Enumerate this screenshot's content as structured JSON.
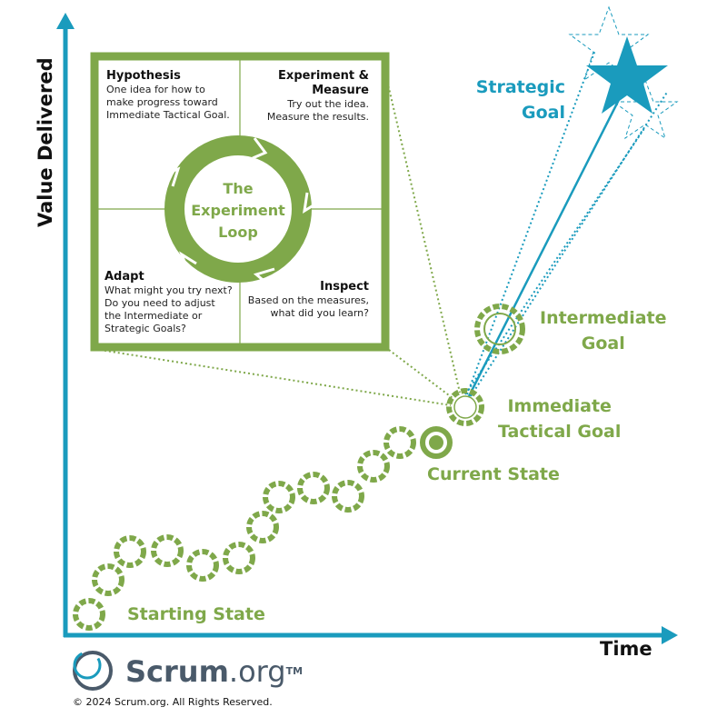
{
  "axes": {
    "y_label": "Value Delivered",
    "x_label": "Time"
  },
  "loop": {
    "center_title": [
      "The",
      "Experiment",
      "Loop"
    ],
    "quadrants": [
      {
        "title": "Hypothesis",
        "body": [
          "One idea for how to",
          "make progress toward",
          "Immediate Tactical Goal."
        ]
      },
      {
        "title": [
          "Experiment &",
          "Measure"
        ],
        "body": [
          "Try out the idea.",
          "Measure the results."
        ]
      },
      {
        "title": "Adapt",
        "body": [
          "What might you try next?",
          "Do you need to adjust",
          "the Intermediate or",
          "Strategic Goals?"
        ]
      },
      {
        "title": "Inspect",
        "body": [
          "Based on the measures,",
          "what did you learn?"
        ]
      }
    ]
  },
  "states": {
    "starting": "Starting State",
    "current": "Current State",
    "immediate": [
      "Immediate",
      "Tactical Goal"
    ],
    "intermediate": [
      "Intermediate",
      "Goal"
    ],
    "strategic": [
      "Strategic",
      "Goal"
    ]
  },
  "footer": {
    "brand": "Scrum",
    "brand_suffix": ".org",
    "tm": "TM",
    "copyright": "© 2024 Scrum.org. All Rights Reserved."
  },
  "colors": {
    "green": "#7fa84a",
    "teal": "#1a9bbd",
    "brand_gray": "#4a5a6a"
  }
}
